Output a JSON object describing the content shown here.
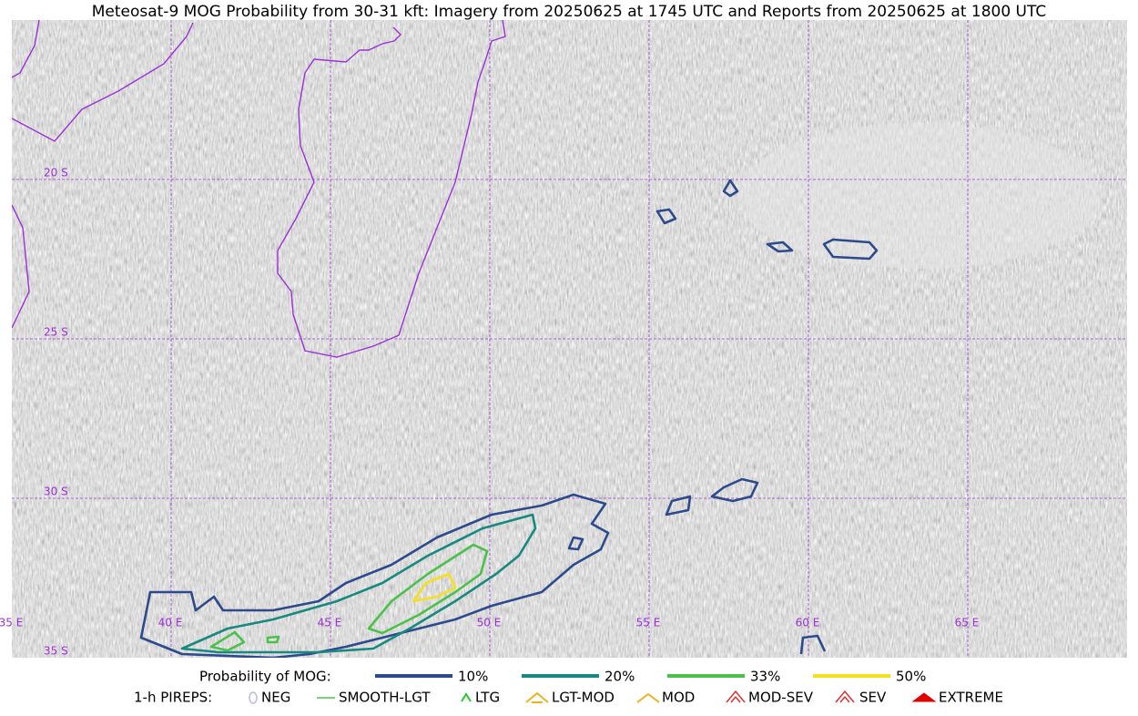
{
  "title": "Meteosat-9 MOG Probability from 30-31 kft: Imagery from 20250625 at 1745 UTC and Reports from 20250625 at 1800 UTC",
  "map": {
    "lon_labels": [
      "35 E",
      "40 E",
      "45 E",
      "50 E",
      "55 E",
      "60 E",
      "65 E"
    ],
    "lat_labels": [
      "20 S",
      "25 S",
      "30 S",
      "35 S"
    ]
  },
  "legend": {
    "probability": {
      "label": "Probability of MOG:",
      "levels": [
        {
          "label": "10%",
          "color": "#2c4a8c"
        },
        {
          "label": "20%",
          "color": "#17897f"
        },
        {
          "label": "33%",
          "color": "#4cc04c"
        },
        {
          "label": "50%",
          "color": "#f5e020"
        }
      ]
    },
    "pireps": {
      "label": "1-h PIREPS:",
      "items": [
        {
          "label": "NEG",
          "color": "#b8b8f0"
        },
        {
          "label": "SMOOTH-LGT",
          "color": "#44cc44"
        },
        {
          "label": "LTG",
          "color": "#22cc22"
        },
        {
          "label": "LGT-MOD",
          "color": "#f0b020"
        },
        {
          "label": "MOD",
          "color": "#f0b020"
        },
        {
          "label": "MOD-SEV",
          "color": "#e03030"
        },
        {
          "label": "SEV",
          "color": "#e03030"
        },
        {
          "label": "EXTREME",
          "color": "#e00000"
        }
      ]
    }
  }
}
